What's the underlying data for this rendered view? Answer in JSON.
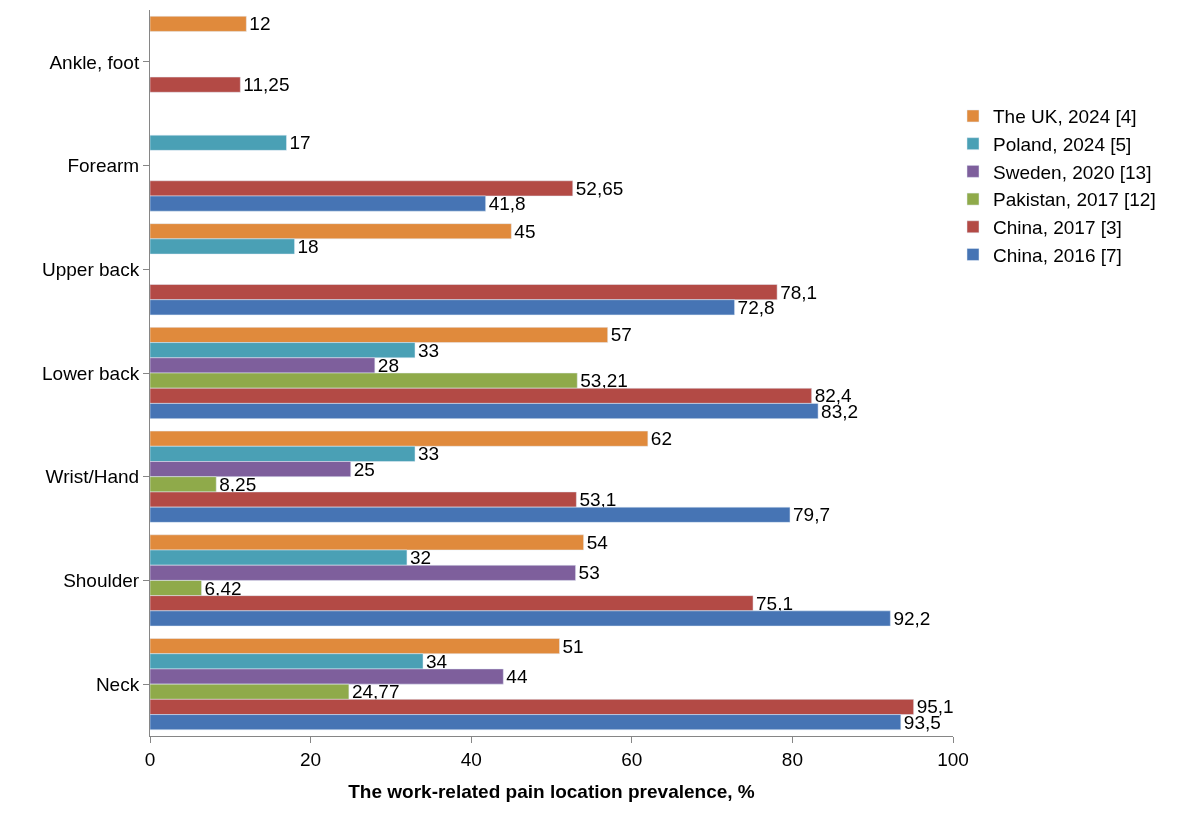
{
  "chart_data": {
    "type": "bar",
    "orientation": "horizontal",
    "xlabel": "The work-related pain location prevalence, %",
    "categories": [
      "Ankle, foot",
      "Forearm",
      "Upper back",
      "Lower back",
      "Wrist/Hand",
      "Shoulder",
      "Neck"
    ],
    "series": [
      {
        "name": "The UK, 2024 [4]",
        "color": "#e08a3c",
        "values": [
          12,
          null,
          45,
          57,
          62,
          54,
          51
        ],
        "value_labels": [
          "12",
          null,
          "45",
          "57",
          "62",
          "54",
          "51"
        ]
      },
      {
        "name": "Poland, 2024 [5]",
        "color": "#4aa0b5",
        "values": [
          null,
          17,
          18,
          33,
          33,
          32,
          34
        ],
        "value_labels": [
          null,
          "17",
          "18",
          "33",
          "33",
          "32",
          "34"
        ]
      },
      {
        "name": "Sweden, 2020 [13]",
        "color": "#7e5f9c",
        "values": [
          null,
          null,
          null,
          28,
          25,
          53,
          44
        ],
        "value_labels": [
          null,
          null,
          null,
          "28",
          "25",
          "53",
          "44"
        ]
      },
      {
        "name": "Pakistan, 2017 [12]",
        "color": "#8faa4a",
        "values": [
          null,
          null,
          null,
          53.21,
          8.25,
          6.42,
          24.77
        ],
        "value_labels": [
          null,
          null,
          null,
          "53,21",
          "8,25",
          "6,42",
          "24,77"
        ]
      },
      {
        "name": "China, 2017 [3]",
        "color": "#b34a45",
        "values": [
          11.25,
          52.65,
          78.1,
          82.4,
          53.1,
          75.1,
          95.1
        ],
        "value_labels": [
          "11,25",
          "52,65",
          "78,1",
          "82,4",
          "53,1",
          "75,1",
          "95,1"
        ]
      },
      {
        "name": "China, 2016 [7]",
        "color": "#4674b4",
        "values": [
          null,
          41.8,
          72.8,
          83.2,
          79.7,
          92.2,
          93.5
        ],
        "value_labels": [
          null,
          "41,8",
          "72,8",
          "83,2",
          "79,7",
          "92,2",
          "93,5"
        ]
      }
    ],
    "xlim": [
      0,
      100
    ],
    "xticks": [
      0,
      20,
      40,
      60,
      80,
      100
    ],
    "legend": "right"
  }
}
